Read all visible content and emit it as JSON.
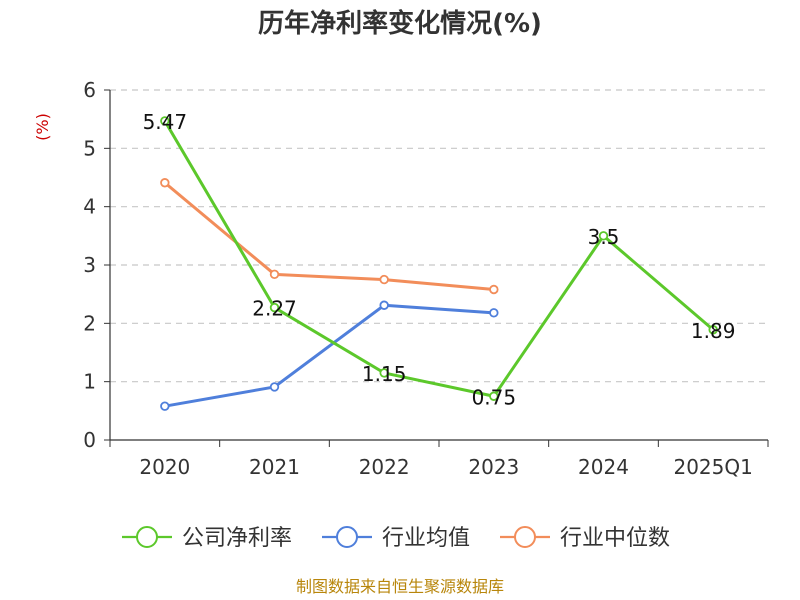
{
  "chart_data": {
    "type": "line",
    "title": "历年净利率变化情况(%)",
    "ylabel": "(%)",
    "xlabel": "",
    "categories": [
      "2020",
      "2021",
      "2022",
      "2023",
      "2024",
      "2025Q1"
    ],
    "ylim": [
      0,
      6
    ],
    "yticks": [
      "0",
      "1",
      "2",
      "3",
      "4",
      "5",
      "6"
    ],
    "grid": true,
    "legend_position": "bottom",
    "series": [
      {
        "name": "公司净利率",
        "color": "#5cc82b",
        "values": [
          5.47,
          2.27,
          1.15,
          0.75,
          3.5,
          1.89
        ],
        "data_labels": [
          "5.47",
          "2.27",
          "1.15",
          "0.75",
          "3.5",
          "1.89"
        ]
      },
      {
        "name": "行业均值",
        "color": "#4f7fdb",
        "values": [
          0.58,
          0.91,
          2.31,
          2.18,
          null,
          null
        ]
      },
      {
        "name": "行业中位数",
        "color": "#f28d5a",
        "values": [
          4.41,
          2.84,
          2.75,
          2.58,
          null,
          null
        ]
      }
    ]
  },
  "source": "制图数据来自恒生聚源数据库"
}
